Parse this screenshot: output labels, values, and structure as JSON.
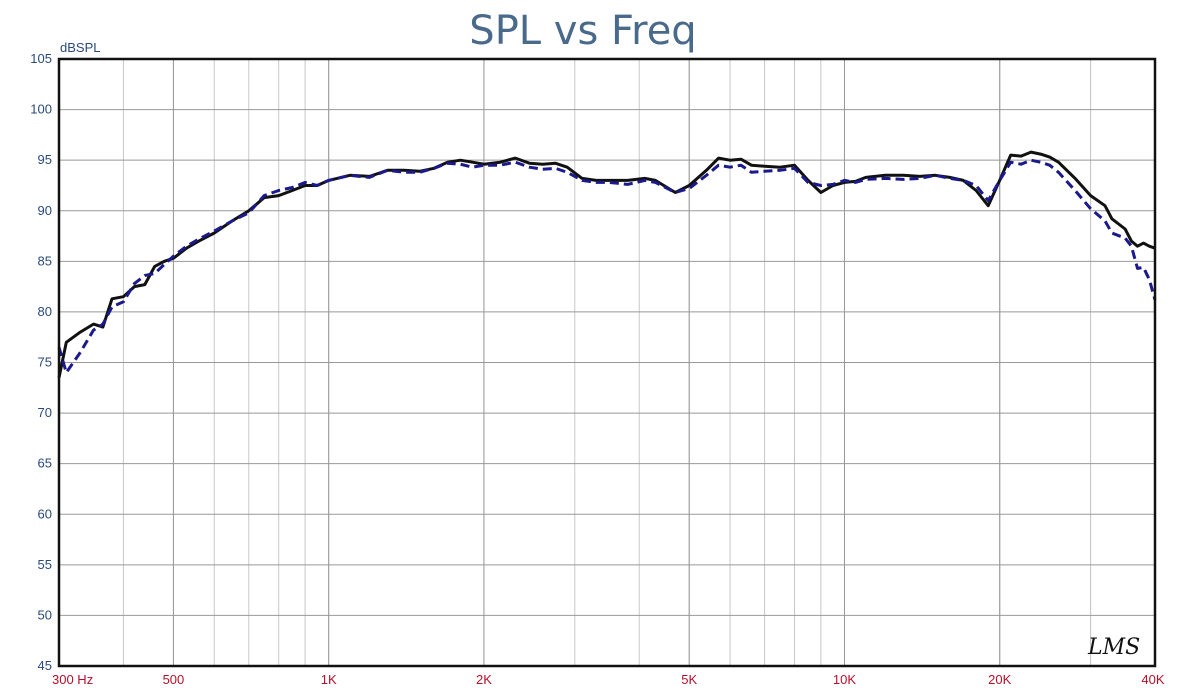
{
  "chart_data": {
    "type": "line",
    "title": "SPL vs Freq",
    "ylabel": "dBSPL",
    "xlabel": "",
    "xscale": "log",
    "xlim": [
      300,
      40000
    ],
    "ylim": [
      45,
      105
    ],
    "yticks": [
      105,
      100,
      95,
      90,
      85,
      80,
      75,
      70,
      65,
      60,
      55,
      50,
      45
    ],
    "xticks": [
      {
        "value": 300,
        "label": "300  Hz"
      },
      {
        "value": 500,
        "label": "500"
      },
      {
        "value": 1000,
        "label": "1K"
      },
      {
        "value": 2000,
        "label": "2K"
      },
      {
        "value": 5000,
        "label": "5K"
      },
      {
        "value": 10000,
        "label": "10K"
      },
      {
        "value": 20000,
        "label": "20K"
      },
      {
        "value": 40000,
        "label": "40K"
      }
    ],
    "grid": true,
    "series": [
      {
        "color": "#111111",
        "style": "solid",
        "points": [
          [
            300,
            73.5
          ],
          [
            310,
            77
          ],
          [
            330,
            78
          ],
          [
            350,
            78.8
          ],
          [
            365,
            78.5
          ],
          [
            380,
            81.3
          ],
          [
            400,
            81.5
          ],
          [
            420,
            82.5
          ],
          [
            440,
            82.7
          ],
          [
            460,
            84.5
          ],
          [
            480,
            85
          ],
          [
            500,
            85.3
          ],
          [
            530,
            86.3
          ],
          [
            560,
            87
          ],
          [
            600,
            87.8
          ],
          [
            650,
            89
          ],
          [
            700,
            90
          ],
          [
            750,
            91.3
          ],
          [
            800,
            91.5
          ],
          [
            850,
            92
          ],
          [
            900,
            92.5
          ],
          [
            950,
            92.5
          ],
          [
            1000,
            93
          ],
          [
            1100,
            93.5
          ],
          [
            1200,
            93.4
          ],
          [
            1300,
            94
          ],
          [
            1400,
            94
          ],
          [
            1500,
            93.9
          ],
          [
            1600,
            94.2
          ],
          [
            1700,
            94.8
          ],
          [
            1800,
            95
          ],
          [
            1900,
            94.8
          ],
          [
            2000,
            94.6
          ],
          [
            2150,
            94.8
          ],
          [
            2300,
            95.2
          ],
          [
            2450,
            94.7
          ],
          [
            2600,
            94.6
          ],
          [
            2750,
            94.7
          ],
          [
            2900,
            94.3
          ],
          [
            3100,
            93.2
          ],
          [
            3300,
            93
          ],
          [
            3500,
            93
          ],
          [
            3800,
            93
          ],
          [
            4100,
            93.2
          ],
          [
            4300,
            93
          ],
          [
            4700,
            91.8
          ],
          [
            5000,
            92.5
          ],
          [
            5400,
            94
          ],
          [
            5700,
            95.2
          ],
          [
            6000,
            95
          ],
          [
            6300,
            95.1
          ],
          [
            6600,
            94.5
          ],
          [
            7000,
            94.4
          ],
          [
            7500,
            94.3
          ],
          [
            8000,
            94.5
          ],
          [
            8500,
            93
          ],
          [
            9000,
            91.8
          ],
          [
            9500,
            92.5
          ],
          [
            10000,
            92.8
          ],
          [
            10500,
            92.9
          ],
          [
            11000,
            93.3
          ],
          [
            12000,
            93.5
          ],
          [
            13000,
            93.5
          ],
          [
            14000,
            93.4
          ],
          [
            15000,
            93.5
          ],
          [
            16000,
            93.3
          ],
          [
            17000,
            93
          ],
          [
            18000,
            92
          ],
          [
            19000,
            90.5
          ],
          [
            20000,
            93
          ],
          [
            21000,
            95.5
          ],
          [
            22000,
            95.4
          ],
          [
            23000,
            95.8
          ],
          [
            24000,
            95.6
          ],
          [
            25000,
            95.3
          ],
          [
            26000,
            94.8
          ],
          [
            28000,
            93.2
          ],
          [
            30000,
            91.5
          ],
          [
            32000,
            90.5
          ],
          [
            33000,
            89.2
          ],
          [
            35000,
            88.2
          ],
          [
            36000,
            87
          ],
          [
            37000,
            86.5
          ],
          [
            38000,
            86.8
          ],
          [
            39000,
            86.5
          ],
          [
            40000,
            86.3
          ]
        ]
      },
      {
        "color": "#1a1a8c",
        "style": "dashed",
        "points": [
          [
            300,
            76.5
          ],
          [
            310,
            74
          ],
          [
            330,
            76
          ],
          [
            350,
            78.2
          ],
          [
            365,
            78.8
          ],
          [
            380,
            80.5
          ],
          [
            400,
            81
          ],
          [
            420,
            82.8
          ],
          [
            440,
            83.6
          ],
          [
            460,
            83.8
          ],
          [
            480,
            84.7
          ],
          [
            500,
            85.5
          ],
          [
            530,
            86.5
          ],
          [
            560,
            87.2
          ],
          [
            600,
            88
          ],
          [
            650,
            89
          ],
          [
            700,
            89.8
          ],
          [
            750,
            91.5
          ],
          [
            800,
            92
          ],
          [
            850,
            92.3
          ],
          [
            900,
            92.8
          ],
          [
            950,
            92.5
          ],
          [
            1000,
            93
          ],
          [
            1100,
            93.5
          ],
          [
            1200,
            93.3
          ],
          [
            1300,
            94
          ],
          [
            1400,
            93.8
          ],
          [
            1500,
            93.8
          ],
          [
            1600,
            94.2
          ],
          [
            1700,
            94.7
          ],
          [
            1800,
            94.6
          ],
          [
            1900,
            94.3
          ],
          [
            2000,
            94.5
          ],
          [
            2150,
            94.5
          ],
          [
            2300,
            94.8
          ],
          [
            2450,
            94.3
          ],
          [
            2600,
            94.1
          ],
          [
            2750,
            94.2
          ],
          [
            2900,
            93.8
          ],
          [
            3100,
            93
          ],
          [
            3300,
            92.8
          ],
          [
            3500,
            92.8
          ],
          [
            3800,
            92.6
          ],
          [
            4100,
            93
          ],
          [
            4300,
            92.8
          ],
          [
            4700,
            91.8
          ],
          [
            5000,
            92.2
          ],
          [
            5400,
            93.5
          ],
          [
            5700,
            94.5
          ],
          [
            6000,
            94.3
          ],
          [
            6300,
            94.5
          ],
          [
            6600,
            93.8
          ],
          [
            7000,
            93.9
          ],
          [
            7500,
            94
          ],
          [
            8000,
            94.2
          ],
          [
            8500,
            92.8
          ],
          [
            9000,
            92.5
          ],
          [
            9500,
            92.6
          ],
          [
            10000,
            93
          ],
          [
            10500,
            92.8
          ],
          [
            11000,
            93.1
          ],
          [
            12000,
            93.2
          ],
          [
            13000,
            93.1
          ],
          [
            14000,
            93.2
          ],
          [
            15000,
            93.5
          ],
          [
            16000,
            93.2
          ],
          [
            17000,
            93
          ],
          [
            18000,
            92.5
          ],
          [
            19000,
            91
          ],
          [
            20000,
            93
          ],
          [
            21000,
            94.8
          ],
          [
            22000,
            94.6
          ],
          [
            23000,
            95
          ],
          [
            24000,
            94.8
          ],
          [
            25000,
            94.5
          ],
          [
            26000,
            93.8
          ],
          [
            28000,
            92
          ],
          [
            30000,
            90.2
          ],
          [
            32000,
            89
          ],
          [
            33000,
            87.8
          ],
          [
            35000,
            87.3
          ],
          [
            36000,
            86.5
          ],
          [
            37000,
            84.3
          ],
          [
            38000,
            84.4
          ],
          [
            39000,
            83.2
          ],
          [
            40000,
            81.2
          ]
        ]
      }
    ]
  },
  "logo_text": "LMS"
}
